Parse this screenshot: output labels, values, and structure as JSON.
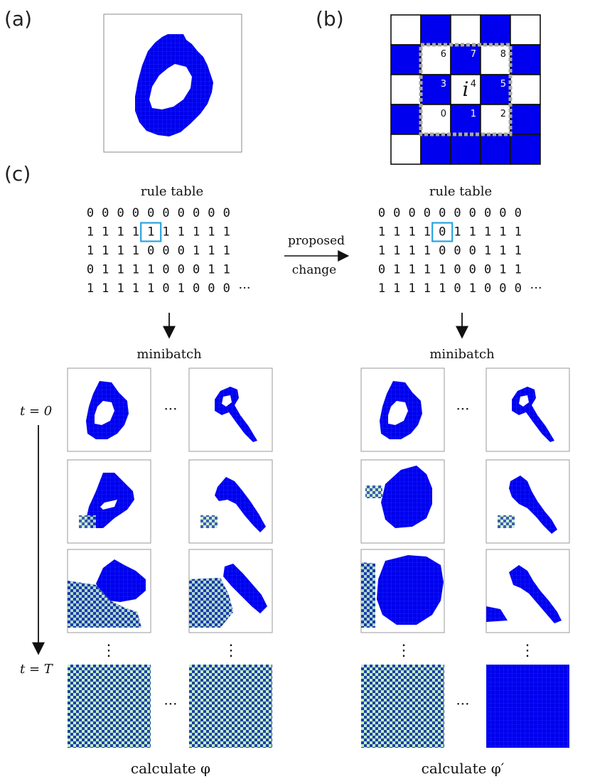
{
  "panels": {
    "a": "(a)",
    "b": "(b)",
    "c": "(c)"
  },
  "neighborhood": {
    "center": "i",
    "numbers": [
      "0",
      "1",
      "2",
      "3",
      "4",
      "5",
      "6",
      "7",
      "8"
    ]
  },
  "rule_tables": {
    "title": "rule table",
    "left": [
      [
        "0",
        "0",
        "0",
        "0",
        "0",
        "0",
        "0",
        "0",
        "0",
        "0"
      ],
      [
        "1",
        "1",
        "1",
        "1",
        "1",
        "1",
        "1",
        "1",
        "1",
        "1"
      ],
      [
        "1",
        "1",
        "1",
        "1",
        "0",
        "0",
        "0",
        "1",
        "1",
        "1"
      ],
      [
        "0",
        "1",
        "1",
        "1",
        "1",
        "0",
        "0",
        "0",
        "1",
        "1"
      ],
      [
        "1",
        "1",
        "1",
        "1",
        "1",
        "0",
        "1",
        "0",
        "0",
        "0"
      ]
    ],
    "right": [
      [
        "0",
        "0",
        "0",
        "0",
        "0",
        "0",
        "0",
        "0",
        "0",
        "0"
      ],
      [
        "1",
        "1",
        "1",
        "1",
        "0",
        "1",
        "1",
        "1",
        "1",
        "1"
      ],
      [
        "1",
        "1",
        "1",
        "1",
        "0",
        "0",
        "0",
        "1",
        "1",
        "1"
      ],
      [
        "0",
        "1",
        "1",
        "1",
        "1",
        "0",
        "0",
        "0",
        "1",
        "1"
      ],
      [
        "1",
        "1",
        "1",
        "1",
        "1",
        "0",
        "1",
        "0",
        "0",
        "0"
      ]
    ],
    "ellipsis": "···",
    "highlight_row": 1,
    "highlight_col": 4
  },
  "arrow_label": {
    "top": "proposed",
    "bottom": "change"
  },
  "minibatch_label": "minibatch",
  "time": {
    "start": "t = 0",
    "end": "t = T"
  },
  "dots": "···",
  "vdots": "⋮",
  "calc_left": "calculate φ",
  "calc_right": "calculate φ′",
  "colors": {
    "cell_on": "#0000ee",
    "cell_grid": "#3344ff",
    "checker_light": "#c8f5c8",
    "checker_dark": "#1a3bbf",
    "highlight_box": "#29a3e0",
    "frame": "#999999"
  }
}
